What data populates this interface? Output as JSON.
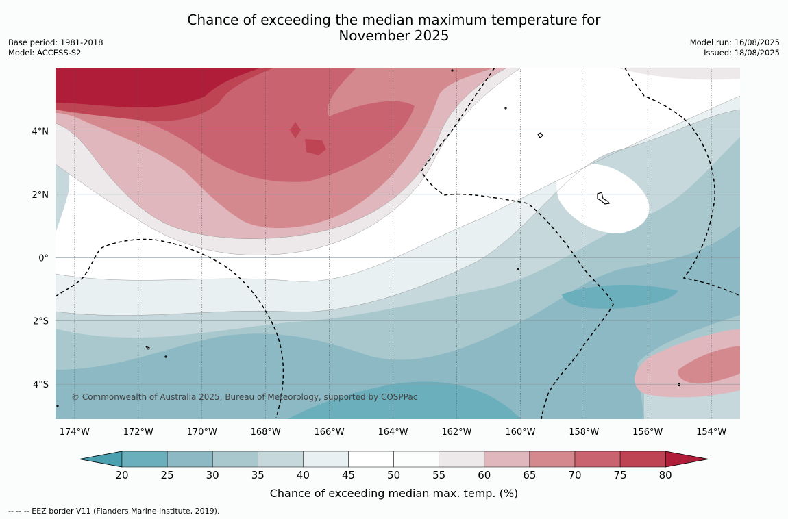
{
  "title_line1": "Chance of exceeding the median maximum temperature for",
  "title_line2": "November 2025",
  "left_meta": {
    "base_period": "Base period: 1981-2018",
    "model": "Model: ACCESS-S2"
  },
  "right_meta": {
    "model_run": "Model run: 16/08/2025",
    "issued": "Issued: 18/08/2025"
  },
  "map": {
    "lon_range": [
      -174.6,
      -153.1
    ],
    "lat_range": [
      -5.1,
      6.0
    ],
    "lon_labels": [
      "174°W",
      "172°W",
      "170°W",
      "168°W",
      "166°W",
      "164°W",
      "162°W",
      "160°W",
      "158°W",
      "156°W",
      "154°W"
    ],
    "lat_labels": [
      "4°N",
      "2°N",
      "0°",
      "2°S",
      "4°S"
    ],
    "credit": "© Commonwealth of Australia 2025, Bureau of Meteorology, supported by COSPPac"
  },
  "colorbar": {
    "ticks": [
      "20",
      "25",
      "30",
      "35",
      "40",
      "45",
      "50",
      "55",
      "60",
      "65",
      "70",
      "75",
      "80"
    ],
    "colors": [
      "#4aa0ae",
      "#6aafbb",
      "#8db9c4",
      "#a8c8cd",
      "#c6d8dc",
      "#e9f0f2",
      "#ffffff",
      "#fcfdfd",
      "#ede9ea",
      "#e0b7bd",
      "#d4898f",
      "#c8636f",
      "#be4454",
      "#b01d39"
    ],
    "label": "Chance of exceeding median max. temp. (%)"
  },
  "footnote": "--  --  -- EEZ border V11 (Flanders Marine Institute, 2019)."
}
